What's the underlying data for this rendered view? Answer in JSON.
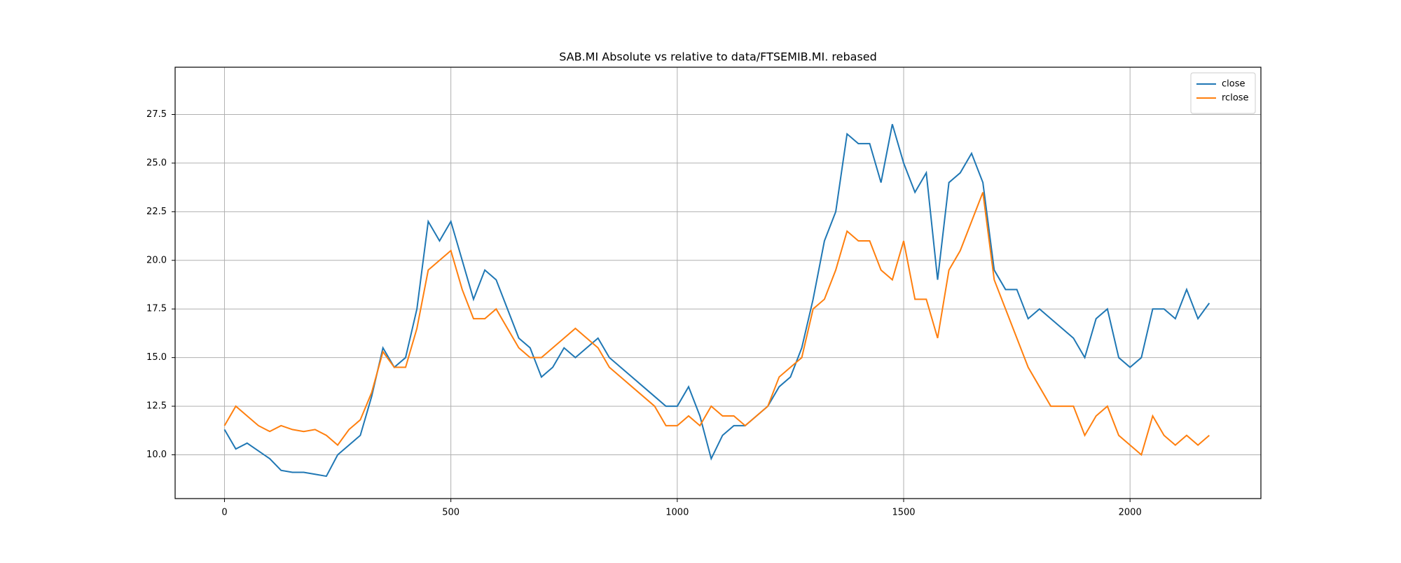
{
  "chart_data": {
    "type": "line",
    "title": "SAB.MI Absolute vs relative to data/FTSEMIB.MI. rebased",
    "x": [
      0,
      25,
      50,
      75,
      100,
      125,
      150,
      175,
      200,
      225,
      250,
      275,
      300,
      325,
      350,
      375,
      400,
      425,
      450,
      475,
      500,
      525,
      550,
      575,
      600,
      625,
      650,
      675,
      700,
      725,
      750,
      775,
      800,
      825,
      850,
      875,
      900,
      925,
      950,
      975,
      1000,
      1025,
      1050,
      1075,
      1100,
      1125,
      1150,
      1175,
      1200,
      1225,
      1250,
      1275,
      1300,
      1325,
      1350,
      1375,
      1400,
      1425,
      1450,
      1475,
      1500,
      1525,
      1550,
      1575,
      1600,
      1625,
      1650,
      1675,
      1700,
      1725,
      1750,
      1775,
      1800,
      1825,
      1850,
      1875,
      1900,
      1925,
      1950,
      1975,
      2000,
      2025,
      2050,
      2075,
      2100,
      2125,
      2150,
      2175
    ],
    "series": [
      {
        "name": "close",
        "color": "#1f77b4",
        "values": [
          11.3,
          10.3,
          10.6,
          10.2,
          9.8,
          9.2,
          9.1,
          9.1,
          9.0,
          8.9,
          10.0,
          10.5,
          11.0,
          13.0,
          15.5,
          14.5,
          15.0,
          17.5,
          22.0,
          21.0,
          22.0,
          20.0,
          18.0,
          19.5,
          19.0,
          17.5,
          16.0,
          15.5,
          14.0,
          14.5,
          15.5,
          15.0,
          15.5,
          16.0,
          15.0,
          14.5,
          14.0,
          13.5,
          13.0,
          12.5,
          12.5,
          13.5,
          12.0,
          9.8,
          11.0,
          11.5,
          11.5,
          12.0,
          12.5,
          13.5,
          14.0,
          15.5,
          18.0,
          21.0,
          22.5,
          26.5,
          26.0,
          26.0,
          24.0,
          27.0,
          25.0,
          23.5,
          24.5,
          19.0,
          24.0,
          24.5,
          25.5,
          24.0,
          19.5,
          18.5,
          18.5,
          17.0,
          17.5,
          17.0,
          16.5,
          16.0,
          15.0,
          17.0,
          17.5,
          15.0,
          14.5,
          15.0,
          17.5,
          17.5,
          17.0,
          18.5,
          17.0,
          17.8
        ]
      },
      {
        "name": "rclose",
        "color": "#ff7f0e",
        "values": [
          11.5,
          12.5,
          12.0,
          11.5,
          11.2,
          11.5,
          11.3,
          11.2,
          11.3,
          11.0,
          10.5,
          11.3,
          11.8,
          13.2,
          15.3,
          14.5,
          14.5,
          16.5,
          19.5,
          20.0,
          20.5,
          18.5,
          17.0,
          17.0,
          17.5,
          16.5,
          15.5,
          15.0,
          15.0,
          15.5,
          16.0,
          16.5,
          16.0,
          15.5,
          14.5,
          14.0,
          13.5,
          13.0,
          12.5,
          11.5,
          11.5,
          12.0,
          11.5,
          12.5,
          12.0,
          12.0,
          11.5,
          12.0,
          12.5,
          14.0,
          14.5,
          15.0,
          17.5,
          18.0,
          19.5,
          21.5,
          21.0,
          21.0,
          19.5,
          19.0,
          21.0,
          18.0,
          18.0,
          16.0,
          19.5,
          20.5,
          22.0,
          23.5,
          19.0,
          17.5,
          16.0,
          14.5,
          13.5,
          12.5,
          12.5,
          12.5,
          11.0,
          12.0,
          12.5,
          11.0,
          10.5,
          10.0,
          12.0,
          11.0,
          10.5,
          11.0,
          10.5,
          11.0
        ]
      }
    ],
    "xlim": [
      -109,
      2289
    ],
    "ylim": [
      7.75,
      29.93
    ],
    "xticks": [
      0,
      500,
      1000,
      1500,
      2000
    ],
    "yticks": [
      {
        "value": 10,
        "label": "10.0"
      },
      12.5,
      {
        "value": 15,
        "label": "15.0"
      },
      17.5,
      {
        "value": 20,
        "label": "20.0"
      },
      22.5,
      {
        "value": 25,
        "label": "25.0"
      },
      27.5
    ],
    "grid": true,
    "legend": "upper right"
  }
}
